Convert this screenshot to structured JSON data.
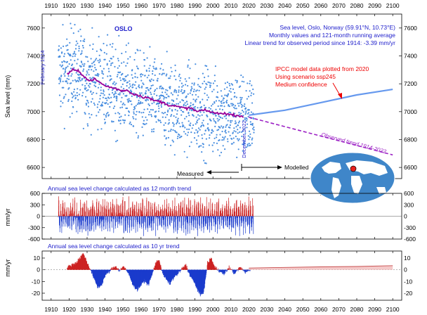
{
  "figure": {
    "station": "OSLO",
    "info_lines": [
      "Sea level, Oslo, Norway (59.91°N, 10.73°E)",
      "Monthly values and 121-month running average",
      "Linear trend for observed period since 1914: -3.39 mm/yr"
    ],
    "ipcc_lines": [
      "IPCC model data plotted from 2020",
      "Using scenario ssp245",
      "Medium confidence"
    ],
    "start_label": "February 1914",
    "end_label": "December 2022",
    "trend_label": "Observed trend 1914-2022",
    "measured_label": "Measured",
    "modelled_label": "Modelled",
    "panel2_title": "Annual sea level change calculated as 12 month trend",
    "panel3_title": "Annual sea level change calculated as 10 yr trend",
    "colors": {
      "monthly_points": "#4a8fe0",
      "running_average": "#990099",
      "observed_trend": "#9b1fc4",
      "ipcc_model": "#6699ee",
      "annotation_blue": "#2222cc",
      "annotation_red": "#ee0000",
      "positive": "#cc2222",
      "negative": "#1a3bcc",
      "globe_ocean": "#3f86c9",
      "globe_land": "#ffffff",
      "station_marker": "#e8211d"
    },
    "icons": [
      "globe-map-icon",
      "station-marker-icon"
    ]
  },
  "chart_data": [
    {
      "type": "scatter",
      "title": "OSLO",
      "ylabel": "Sea level (mm)",
      "xlim": [
        1905,
        2105
      ],
      "ylim": [
        6520,
        7700
      ],
      "x_ticks": [
        1910,
        1920,
        1930,
        1940,
        1950,
        1960,
        1970,
        1980,
        1990,
        2000,
        2010,
        2020,
        2030,
        2040,
        2050,
        2060,
        2070,
        2080,
        2090,
        2100
      ],
      "y_ticks": [
        6600,
        6800,
        7000,
        7200,
        7400,
        7600
      ],
      "grid": false,
      "series": [
        {
          "name": "Monthly values",
          "style": "points",
          "x_range": [
            1914.1,
            2022.9
          ],
          "mean_trend_mm_per_yr": -3.39,
          "typical_spread_mm": 150
        },
        {
          "name": "121-month running average",
          "style": "line",
          "x": [
            1919,
            1922,
            1925,
            1928,
            1931,
            1934,
            1937,
            1940,
            1943,
            1946,
            1949,
            1952,
            1955,
            1958,
            1961,
            1964,
            1967,
            1970,
            1973,
            1976,
            1979,
            1982,
            1985,
            1988,
            1991,
            1994,
            1997,
            2000,
            2003,
            2006,
            2009,
            2012,
            2015,
            2017
          ],
          "y": [
            7270,
            7300,
            7290,
            7260,
            7220,
            7235,
            7210,
            7185,
            7175,
            7165,
            7150,
            7155,
            7130,
            7120,
            7105,
            7100,
            7080,
            7075,
            7060,
            7045,
            7040,
            7030,
            7025,
            7025,
            7000,
            7010,
            7005,
            6995,
            6985,
            6990,
            6980,
            6975,
            6970,
            6965
          ]
        },
        {
          "name": "Observed trend 1914-2022",
          "style": "dashed",
          "x": [
            2020,
            2100
          ],
          "y": [
            6960,
            6690
          ]
        },
        {
          "name": "IPCC model ssp245",
          "style": "line",
          "x": [
            2020,
            2040,
            2060,
            2080,
            2100
          ],
          "y": [
            6975,
            7010,
            7065,
            7120,
            7160
          ]
        }
      ],
      "annotations": [
        "February 1914",
        "December 2022",
        "Observed trend 1914-2022",
        "Measured",
        "Modelled"
      ]
    },
    {
      "type": "bar",
      "title": "Annual sea level change calculated as 12 month trend",
      "ylabel": "mm/yr",
      "xlim": [
        1905,
        2105
      ],
      "ylim": [
        -600,
        600
      ],
      "y_ticks": [
        -600,
        -300,
        0,
        300,
        600
      ],
      "x_range": [
        1914,
        2022.5
      ],
      "note": "Monthly 12-month trend values oscillating roughly between -450 and +500 mm/yr; positive bars red, negative bars blue"
    },
    {
      "type": "area",
      "title": "Annual sea level change calculated as 10 yr trend",
      "ylabel": "mm/yr",
      "xlim": [
        1905,
        2105
      ],
      "ylim": [
        -26,
        16
      ],
      "y_ticks": [
        -20,
        -10,
        0,
        10
      ],
      "x": [
        1919,
        1924,
        1926,
        1928,
        1930,
        1932,
        1934,
        1936,
        1938,
        1940,
        1942,
        1944,
        1946,
        1948,
        1950,
        1953,
        1956,
        1958,
        1960,
        1962,
        1964,
        1966,
        1968,
        1970,
        1972,
        1974,
        1976,
        1978,
        1980,
        1983,
        1985,
        1987,
        1990,
        1993,
        1995,
        1997,
        1999,
        2001,
        2003,
        2006,
        2009,
        2012,
        2015,
        2018,
        2021
      ],
      "y": [
        2,
        6,
        10,
        14,
        6,
        0,
        -8,
        -15,
        -13,
        -5,
        -2,
        1,
        3,
        -1,
        3,
        -3,
        -14,
        -17,
        -13,
        -9,
        -13,
        -5,
        5,
        9,
        -3,
        -8,
        -12,
        -7,
        -4,
        1,
        4,
        -4,
        -12,
        -22,
        -18,
        5,
        10,
        2,
        0,
        -4,
        2,
        -3,
        2,
        -2,
        1
      ],
      "model_x": [
        2020,
        2040,
        2060,
        2080,
        2100
      ],
      "model_y": [
        1.5,
        2.0,
        2.5,
        2.8,
        3.5
      ]
    }
  ]
}
